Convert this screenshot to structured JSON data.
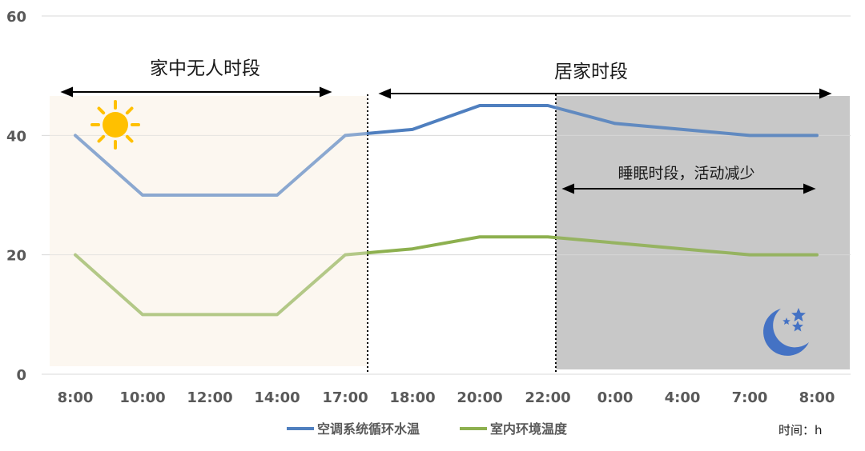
{
  "chart_data": {
    "type": "line",
    "categories": [
      "8:00",
      "10:00",
      "12:00",
      "14:00",
      "17:00",
      "18:00",
      "20:00",
      "22:00",
      "0:00",
      "4:00",
      "7:00",
      "8:00"
    ],
    "series": [
      {
        "name": "空调系统循环水温",
        "values": [
          40,
          30,
          30,
          30,
          40,
          41,
          45,
          45,
          42,
          41,
          40,
          40
        ],
        "color": "#4f7fbf"
      },
      {
        "name": "室内环境温度",
        "values": [
          20,
          10,
          10,
          10,
          20,
          21,
          23,
          23,
          22,
          21,
          20,
          20
        ],
        "color": "#8db04f"
      }
    ],
    "ylim": [
      0,
      60
    ],
    "yticks": [
      0,
      20,
      40,
      60
    ],
    "grid": true,
    "legend": "bottom",
    "annotations": {
      "away": "家中无人时段",
      "home": "居家时段",
      "sleep": "睡眠时段，活动减少",
      "unit": "时间：h"
    },
    "colors": {
      "away_bg": "#fcf7f0",
      "night_bg": "#c8c8c8",
      "sun": "#ffc000",
      "moon": "#4472c4"
    }
  }
}
